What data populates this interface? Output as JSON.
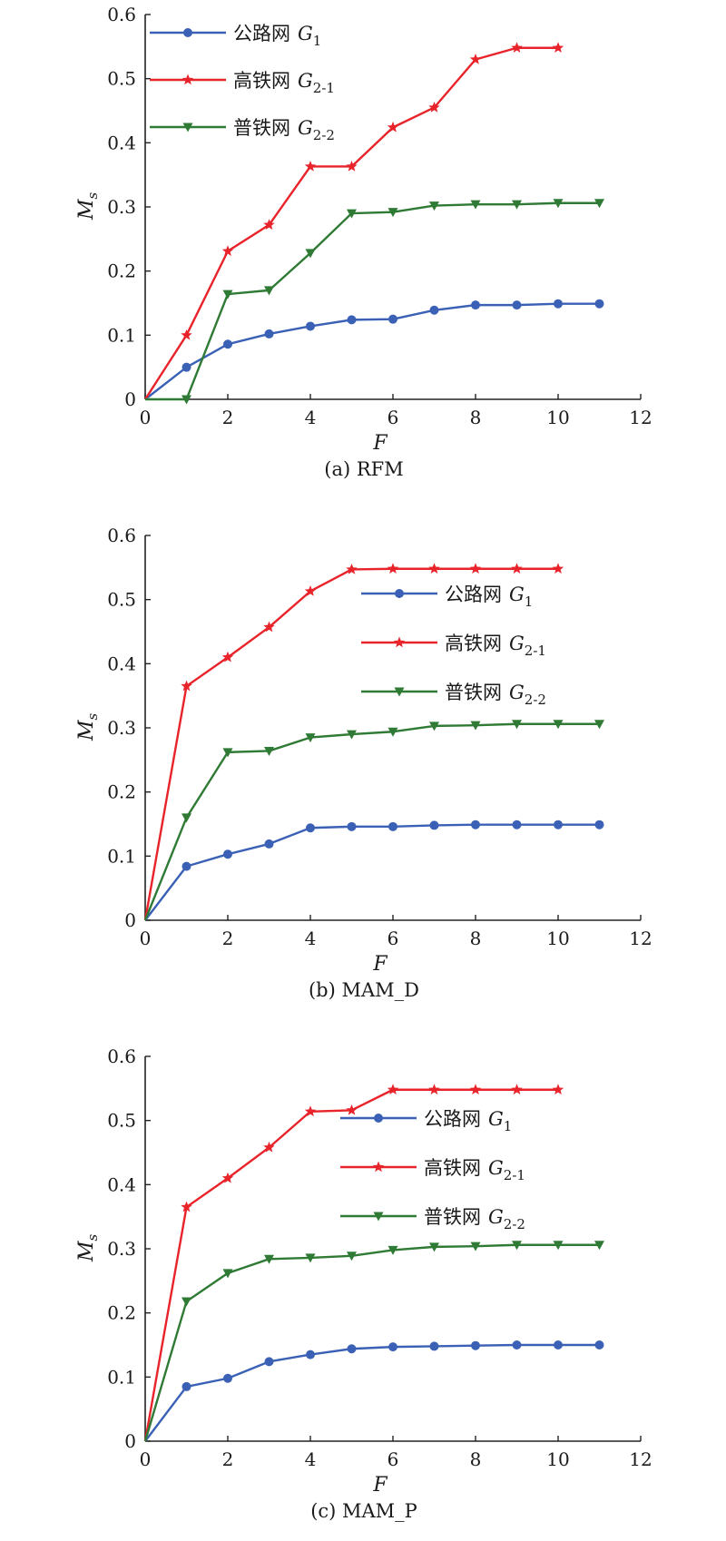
{
  "colors": {
    "road": "#3a61b5",
    "hsr": "#e8232a",
    "rail": "#2f7a34",
    "axis": "#222222"
  },
  "chart_data": [
    {
      "type": "line",
      "caption": "(a) RFM",
      "xlabel": "F",
      "ylabel": {
        "main": "M",
        "sub": "s"
      },
      "xlim": [
        0,
        12
      ],
      "ylim": [
        0,
        0.6
      ],
      "xticks": [
        "0",
        "2",
        "4",
        "6",
        "8",
        "10",
        "12"
      ],
      "yticks": [
        "0",
        "0.1",
        "0.2",
        "0.3",
        "0.4",
        "0.5",
        "0.6"
      ],
      "legend": "top-left",
      "series": [
        {
          "name": "公路网",
          "symbol": "G",
          "sub": "1",
          "marker": "circle",
          "x": [
            0,
            1,
            2,
            3,
            4,
            5,
            6,
            7,
            8,
            9,
            10,
            11
          ],
          "values": [
            0,
            0.05,
            0.086,
            0.102,
            0.114,
            0.124,
            0.125,
            0.139,
            0.147,
            0.147,
            0.149,
            0.149
          ]
        },
        {
          "name": "高铁网",
          "symbol": "G",
          "sub": "2-1",
          "marker": "star",
          "x": [
            0,
            1,
            2,
            3,
            4,
            5,
            6,
            7,
            8,
            9,
            10
          ],
          "values": [
            0,
            0.1,
            0.231,
            0.272,
            0.363,
            0.363,
            0.424,
            0.455,
            0.53,
            0.548,
            0.548
          ]
        },
        {
          "name": "普铁网",
          "symbol": "G",
          "sub": "2-2",
          "marker": "triangle-down",
          "x": [
            0,
            1,
            2,
            3,
            4,
            5,
            6,
            7,
            8,
            9,
            10,
            11
          ],
          "values": [
            0,
            0,
            0.164,
            0.17,
            0.228,
            0.29,
            0.292,
            0.302,
            0.304,
            0.304,
            0.306,
            0.306
          ]
        }
      ]
    },
    {
      "type": "line",
      "caption": "(b) MAM_D",
      "xlabel": "F",
      "ylabel": {
        "main": "M",
        "sub": "s"
      },
      "xlim": [
        0,
        12
      ],
      "ylim": [
        0,
        0.6
      ],
      "xticks": [
        "0",
        "2",
        "4",
        "6",
        "8",
        "10",
        "12"
      ],
      "yticks": [
        "0",
        "0.1",
        "0.2",
        "0.3",
        "0.4",
        "0.5",
        "0.6"
      ],
      "legend": "center-right",
      "series": [
        {
          "name": "公路网",
          "symbol": "G",
          "sub": "1",
          "marker": "circle",
          "x": [
            0,
            1,
            2,
            3,
            4,
            5,
            6,
            7,
            8,
            9,
            10,
            11
          ],
          "values": [
            0,
            0.084,
            0.103,
            0.119,
            0.144,
            0.146,
            0.146,
            0.148,
            0.149,
            0.149,
            0.149,
            0.149
          ]
        },
        {
          "name": "高铁网",
          "symbol": "G",
          "sub": "2-1",
          "marker": "star",
          "x": [
            0,
            1,
            2,
            3,
            4,
            5,
            6,
            7,
            8,
            9,
            10
          ],
          "values": [
            0,
            0.365,
            0.41,
            0.457,
            0.513,
            0.547,
            0.548,
            0.548,
            0.548,
            0.548,
            0.548
          ]
        },
        {
          "name": "普铁网",
          "symbol": "G",
          "sub": "2-2",
          "marker": "triangle-down",
          "x": [
            0,
            1,
            2,
            3,
            4,
            5,
            6,
            7,
            8,
            9,
            10,
            11
          ],
          "values": [
            0,
            0.16,
            0.262,
            0.264,
            0.285,
            0.29,
            0.294,
            0.303,
            0.304,
            0.306,
            0.306,
            0.306
          ]
        }
      ]
    },
    {
      "type": "line",
      "caption": "(c) MAM_P",
      "xlabel": "F",
      "ylabel": {
        "main": "M",
        "sub": "s"
      },
      "xlim": [
        0,
        12
      ],
      "ylim": [
        0,
        0.6
      ],
      "xticks": [
        "0",
        "2",
        "4",
        "6",
        "8",
        "10",
        "12"
      ],
      "yticks": [
        "0",
        "0.1",
        "0.2",
        "0.3",
        "0.4",
        "0.5",
        "0.6"
      ],
      "legend": "center-right",
      "series": [
        {
          "name": "公路网",
          "symbol": "G",
          "sub": "1",
          "marker": "circle",
          "x": [
            0,
            1,
            2,
            3,
            4,
            5,
            6,
            7,
            8,
            9,
            10,
            11
          ],
          "values": [
            0,
            0.085,
            0.098,
            0.124,
            0.135,
            0.144,
            0.147,
            0.148,
            0.149,
            0.15,
            0.15,
            0.15
          ]
        },
        {
          "name": "高铁网",
          "symbol": "G",
          "sub": "2-1",
          "marker": "star",
          "x": [
            0,
            1,
            2,
            3,
            4,
            5,
            6,
            7,
            8,
            9,
            10
          ],
          "values": [
            0,
            0.365,
            0.41,
            0.458,
            0.514,
            0.516,
            0.548,
            0.548,
            0.548,
            0.548,
            0.548
          ]
        },
        {
          "name": "普铁网",
          "symbol": "G",
          "sub": "2-2",
          "marker": "triangle-down",
          "x": [
            0,
            1,
            2,
            3,
            4,
            5,
            6,
            7,
            8,
            9,
            10,
            11
          ],
          "values": [
            0,
            0.218,
            0.262,
            0.284,
            0.286,
            0.289,
            0.298,
            0.303,
            0.304,
            0.306,
            0.306,
            0.306
          ]
        }
      ]
    }
  ]
}
